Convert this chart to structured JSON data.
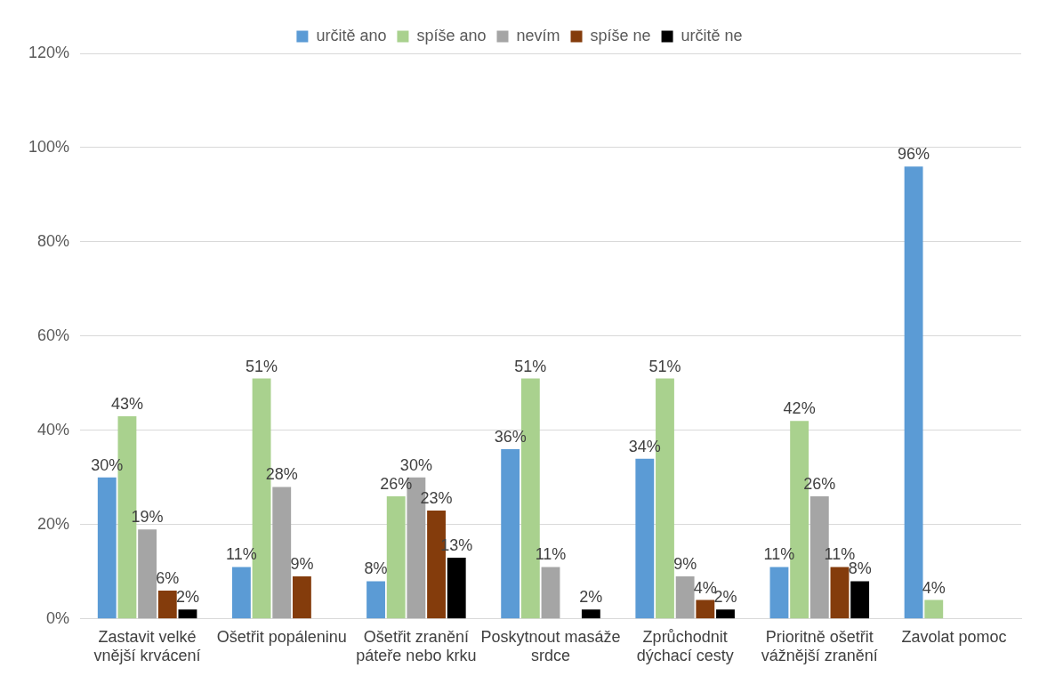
{
  "chart_data": {
    "type": "bar",
    "categories": [
      "Zastavit velké vnější krvácení",
      "Ošetřit popáleninu",
      "Ošetřit zranění páteře nebo krku",
      "Poskytnout masáže srdce",
      "Zprůchodnit dýchací cesty",
      "Prioritně ošetřit vážnější zranění",
      "Zavolat pomoc"
    ],
    "series": [
      {
        "name": "určitě ano",
        "color": "#5b9bd5",
        "values": [
          30,
          11,
          8,
          36,
          34,
          11,
          96
        ],
        "value_labels": [
          "30%",
          "11%",
          "8%",
          "36%",
          "34%",
          "11%",
          "96%"
        ]
      },
      {
        "name": "spíše ano",
        "color": "#a9d18e",
        "values": [
          43,
          51,
          26,
          51,
          51,
          42,
          4
        ],
        "value_labels": [
          "43%",
          "51%",
          "26%",
          "51%",
          "51%",
          "42%",
          "4%"
        ]
      },
      {
        "name": "nevím",
        "color": "#a5a5a5",
        "values": [
          19,
          28,
          30,
          11,
          9,
          26,
          null
        ],
        "value_labels": [
          "19%",
          "28%",
          "30%",
          "11%",
          "9%",
          "26%",
          null
        ]
      },
      {
        "name": "spíše ne",
        "color": "#843c0c",
        "values": [
          6,
          9,
          23,
          null,
          4,
          11,
          null
        ],
        "value_labels": [
          "6%",
          "9%",
          "23%",
          null,
          "4%",
          "11%",
          null
        ]
      },
      {
        "name": "určitě ne",
        "color": "#000000",
        "values": [
          2,
          null,
          13,
          2,
          2,
          8,
          null
        ],
        "value_labels": [
          "2%",
          null,
          "13%",
          "2%",
          "2%",
          "8%",
          null
        ]
      }
    ],
    "ylim": [
      0,
      120
    ],
    "yticks": [
      {
        "value": 0,
        "label": "0%"
      },
      {
        "value": 20,
        "label": "20%"
      },
      {
        "value": 40,
        "label": "40%"
      },
      {
        "value": 60,
        "label": "60%"
      },
      {
        "value": 80,
        "label": "80%"
      },
      {
        "value": 100,
        "label": "100%"
      },
      {
        "value": 120,
        "label": "120%"
      }
    ],
    "grid": "y",
    "legend": "top"
  }
}
